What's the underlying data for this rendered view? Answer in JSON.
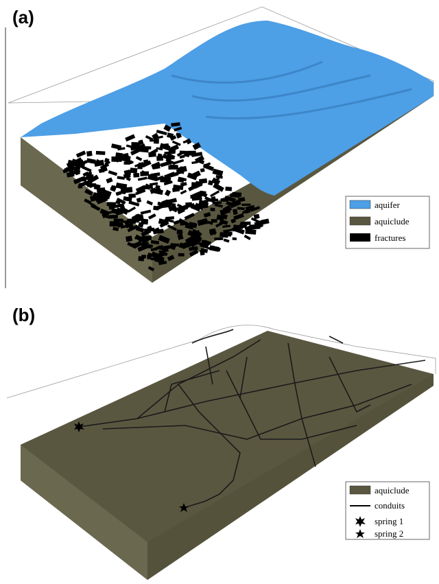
{
  "panels": [
    {
      "label": "(a)",
      "legend": [
        "aquifer",
        "aquiclude",
        "fractures"
      ]
    },
    {
      "label": "(b)",
      "legend": [
        "aquiclude",
        "conduits",
        "spring 1",
        "spring 2"
      ]
    }
  ]
}
